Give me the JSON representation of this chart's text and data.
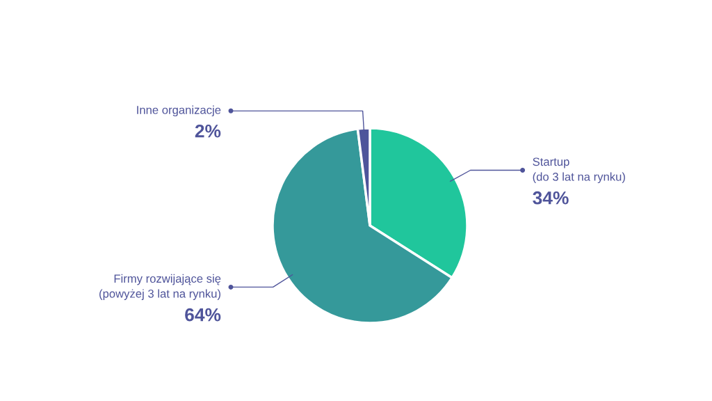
{
  "chart_data": {
    "type": "pie",
    "categories": [
      "Startup\n(do 3 lat na rynku)",
      "Firmy rozwijające się\n(powyżej 3 lat na rynku)",
      "Inne organizacje"
    ],
    "values": [
      34,
      64,
      2
    ],
    "colors": [
      "#20c69c",
      "#35999a",
      "#4e559b"
    ],
    "value_labels": [
      "34%",
      "64%",
      "2%"
    ]
  }
}
